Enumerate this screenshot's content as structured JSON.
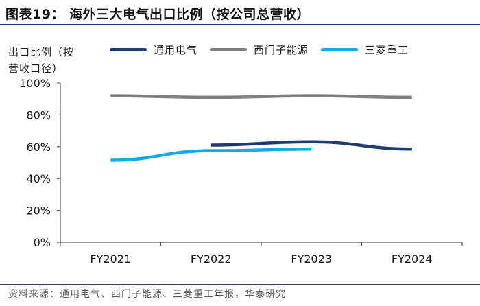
{
  "figure": {
    "title": "图表19：  海外三大电气出口比例（按公司总营收）",
    "source": "资料来源：通用电气、西门子能源、三菱重工年报，华泰研究"
  },
  "chart_data": {
    "type": "line",
    "ylabel": "出口比例（按营收口径）",
    "ylabel_lines": [
      "出口比例（按",
      "营收口径）"
    ],
    "categories": [
      "FY2021",
      "FY2022",
      "FY2023",
      "FY2024"
    ],
    "ylim": [
      0,
      100
    ],
    "yticks": [
      0,
      20,
      40,
      60,
      80,
      100
    ],
    "ytick_labels": [
      "0%",
      "20%",
      "40%",
      "60%",
      "80%",
      "100%"
    ],
    "grid": false,
    "legend_position": "top",
    "series": [
      {
        "name": "通用电气",
        "color": "#1f3c6e",
        "values": [
          null,
          61,
          63,
          58.5
        ]
      },
      {
        "name": "西门子能源",
        "color": "#808080",
        "values": [
          92,
          91,
          92,
          91
        ]
      },
      {
        "name": "三菱重工",
        "color": "#16a9e8",
        "values": [
          51.5,
          57.5,
          58.5,
          null
        ]
      }
    ]
  }
}
